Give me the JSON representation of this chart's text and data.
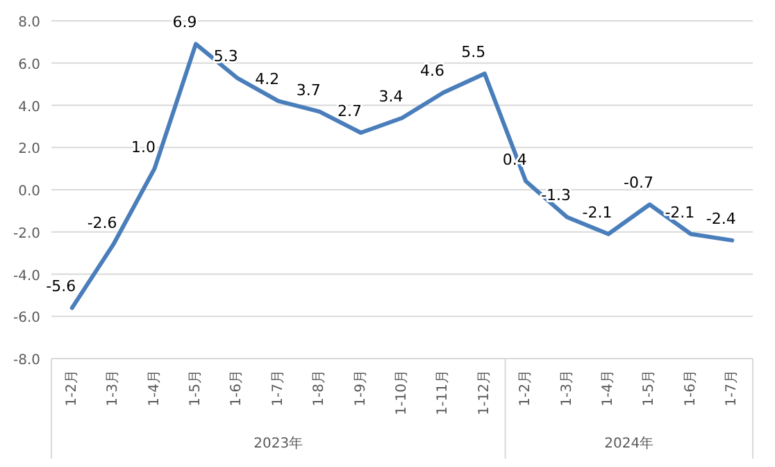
{
  "chart_data": {
    "type": "line",
    "categories": [
      "1-2月",
      "1-3月",
      "1-4月",
      "1-5月",
      "1-6月",
      "1-7月",
      "1-8月",
      "1-9月",
      "1-10月",
      "1-11月",
      "1-12月",
      "1-2月",
      "1-3月",
      "1-4月",
      "1-5月",
      "1-6月",
      "1-7月"
    ],
    "series": [
      {
        "color": "#4a7ebb",
        "values": [
          -5.6,
          -2.6,
          1.0,
          6.9,
          5.3,
          4.2,
          3.7,
          2.7,
          3.4,
          4.6,
          5.5,
          0.4,
          -1.3,
          -2.1,
          -0.7,
          -2.1,
          -2.4
        ],
        "value_labels": [
          "-5.6",
          "-2.6",
          "1.0",
          "6.9",
          "5.3",
          "4.2",
          "3.7",
          "2.7",
          "3.4",
          "4.6",
          "5.5",
          "0.4",
          "-1.3",
          "-2.1",
          "-0.7",
          "-2.1",
          "-2.4"
        ]
      }
    ],
    "ylim": [
      -8,
      8
    ],
    "yticks": [
      {
        "value": -8,
        "label": "-8.0"
      },
      {
        "value": -6,
        "label": "-6.0"
      },
      {
        "value": -4,
        "label": "-4.0"
      },
      {
        "value": -2,
        "label": "-2.0"
      },
      {
        "value": 0,
        "label": "0.0"
      },
      {
        "value": 2,
        "label": "2.0"
      },
      {
        "value": 4,
        "label": "4.0"
      },
      {
        "value": 6,
        "label": "6.0"
      },
      {
        "value": 8,
        "label": "8.0"
      }
    ],
    "grid": "y",
    "marker": "none",
    "line_style": "solid",
    "annotations": [
      "2023年",
      "2024年"
    ]
  }
}
